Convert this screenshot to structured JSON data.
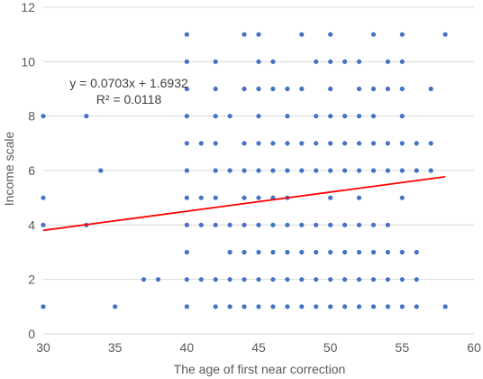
{
  "chart_data": {
    "type": "scatter",
    "title": "",
    "xlabel": "The age of first near correction",
    "ylabel": "Income scale",
    "xlim": [
      30,
      60
    ],
    "ylim": [
      0,
      12
    ],
    "xticks": [
      30,
      35,
      40,
      45,
      50,
      55,
      60
    ],
    "yticks": [
      0,
      2,
      4,
      6,
      8,
      10,
      12
    ],
    "grid": "horizontal",
    "colors": {
      "points": "#4472C4",
      "trendline": "#FF0000",
      "grid": "#D9D9D9"
    },
    "series": [
      {
        "points": [
          [
            30,
            1
          ],
          [
            30,
            4
          ],
          [
            30,
            5
          ],
          [
            30,
            8
          ],
          [
            33,
            4
          ],
          [
            33,
            8
          ],
          [
            34,
            6
          ],
          [
            35,
            1
          ],
          [
            37,
            2
          ],
          [
            38,
            2
          ],
          [
            40,
            1
          ],
          [
            40,
            2
          ],
          [
            40,
            3
          ],
          [
            40,
            4
          ],
          [
            40,
            5
          ],
          [
            40,
            6
          ],
          [
            40,
            7
          ],
          [
            40,
            8
          ],
          [
            40,
            9
          ],
          [
            40,
            10
          ],
          [
            40,
            11
          ],
          [
            41,
            2
          ],
          [
            41,
            4
          ],
          [
            41,
            5
          ],
          [
            41,
            7
          ],
          [
            42,
            1
          ],
          [
            42,
            2
          ],
          [
            42,
            4
          ],
          [
            42,
            5
          ],
          [
            42,
            6
          ],
          [
            42,
            7
          ],
          [
            42,
            8
          ],
          [
            42,
            9
          ],
          [
            42,
            10
          ],
          [
            43,
            1
          ],
          [
            43,
            2
          ],
          [
            43,
            3
          ],
          [
            43,
            4
          ],
          [
            43,
            6
          ],
          [
            43,
            8
          ],
          [
            44,
            1
          ],
          [
            44,
            2
          ],
          [
            44,
            3
          ],
          [
            44,
            4
          ],
          [
            44,
            5
          ],
          [
            44,
            6
          ],
          [
            44,
            7
          ],
          [
            44,
            9
          ],
          [
            44,
            11
          ],
          [
            45,
            1
          ],
          [
            45,
            2
          ],
          [
            45,
            3
          ],
          [
            45,
            4
          ],
          [
            45,
            5
          ],
          [
            45,
            6
          ],
          [
            45,
            7
          ],
          [
            45,
            8
          ],
          [
            45,
            9
          ],
          [
            45,
            10
          ],
          [
            45,
            11
          ],
          [
            46,
            1
          ],
          [
            46,
            2
          ],
          [
            46,
            3
          ],
          [
            46,
            4
          ],
          [
            46,
            5
          ],
          [
            46,
            6
          ],
          [
            46,
            7
          ],
          [
            46,
            9
          ],
          [
            46,
            10
          ],
          [
            47,
            1
          ],
          [
            47,
            2
          ],
          [
            47,
            3
          ],
          [
            47,
            4
          ],
          [
            47,
            5
          ],
          [
            47,
            6
          ],
          [
            47,
            7
          ],
          [
            47,
            8
          ],
          [
            47,
            9
          ],
          [
            48,
            1
          ],
          [
            48,
            2
          ],
          [
            48,
            3
          ],
          [
            48,
            4
          ],
          [
            48,
            6
          ],
          [
            48,
            7
          ],
          [
            48,
            9
          ],
          [
            48,
            11
          ],
          [
            49,
            1
          ],
          [
            49,
            2
          ],
          [
            49,
            3
          ],
          [
            49,
            4
          ],
          [
            49,
            6
          ],
          [
            49,
            7
          ],
          [
            49,
            8
          ],
          [
            49,
            10
          ],
          [
            50,
            1
          ],
          [
            50,
            2
          ],
          [
            50,
            3
          ],
          [
            50,
            4
          ],
          [
            50,
            5
          ],
          [
            50,
            6
          ],
          [
            50,
            7
          ],
          [
            50,
            8
          ],
          [
            50,
            9
          ],
          [
            50,
            10
          ],
          [
            50,
            11
          ],
          [
            51,
            1
          ],
          [
            51,
            2
          ],
          [
            51,
            3
          ],
          [
            51,
            4
          ],
          [
            51,
            6
          ],
          [
            51,
            7
          ],
          [
            51,
            8
          ],
          [
            51,
            10
          ],
          [
            52,
            1
          ],
          [
            52,
            2
          ],
          [
            52,
            3
          ],
          [
            52,
            4
          ],
          [
            52,
            5
          ],
          [
            52,
            6
          ],
          [
            52,
            7
          ],
          [
            52,
            8
          ],
          [
            52,
            9
          ],
          [
            52,
            10
          ],
          [
            53,
            1
          ],
          [
            53,
            2
          ],
          [
            53,
            3
          ],
          [
            53,
            4
          ],
          [
            53,
            6
          ],
          [
            53,
            7
          ],
          [
            53,
            8
          ],
          [
            53,
            9
          ],
          [
            53,
            11
          ],
          [
            54,
            1
          ],
          [
            54,
            2
          ],
          [
            54,
            3
          ],
          [
            54,
            4
          ],
          [
            54,
            6
          ],
          [
            54,
            7
          ],
          [
            54,
            9
          ],
          [
            54,
            10
          ],
          [
            55,
            1
          ],
          [
            55,
            2
          ],
          [
            55,
            3
          ],
          [
            55,
            5
          ],
          [
            55,
            6
          ],
          [
            55,
            7
          ],
          [
            55,
            8
          ],
          [
            55,
            9
          ],
          [
            55,
            10
          ],
          [
            55,
            11
          ],
          [
            56,
            1
          ],
          [
            56,
            2
          ],
          [
            56,
            3
          ],
          [
            56,
            6
          ],
          [
            56,
            7
          ],
          [
            57,
            6
          ],
          [
            57,
            7
          ],
          [
            57,
            9
          ],
          [
            58,
            1
          ],
          [
            58,
            11
          ]
        ]
      }
    ],
    "trendline": {
      "slope": 0.0703,
      "intercept": 1.6932,
      "x_range": [
        30,
        58
      ],
      "equation": "y = 0.0703x + 1.6932",
      "r_squared": "R² = 0.0118"
    }
  }
}
